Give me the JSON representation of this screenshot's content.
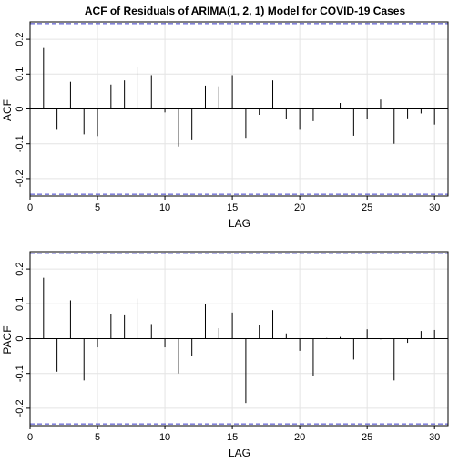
{
  "chart_data": [
    {
      "type": "bar",
      "title": "ACF of Residuals of ARIMA(1, 2, 1) Model for COVID-19 Cases",
      "xlabel": "LAG",
      "ylabel": "ACF",
      "xlim": [
        0,
        31
      ],
      "ylim": [
        -0.25,
        0.25
      ],
      "xticks": [
        "0",
        "5",
        "10",
        "15",
        "20",
        "25",
        "30"
      ],
      "yticks": [
        "-0.2",
        "-0.1",
        "0",
        "0.1",
        "0.2"
      ],
      "grid": true,
      "confidence_bound": 0.245,
      "x": [
        1,
        2,
        3,
        4,
        5,
        6,
        7,
        8,
        9,
        10,
        11,
        12,
        13,
        14,
        15,
        16,
        17,
        18,
        19,
        20,
        21,
        22,
        23,
        24,
        25,
        26,
        27,
        28,
        29,
        30
      ],
      "values": [
        0.175,
        -0.06,
        0.078,
        -0.073,
        -0.078,
        0.07,
        0.082,
        0.12,
        0.097,
        -0.01,
        -0.108,
        -0.09,
        0.067,
        0.065,
        0.097,
        -0.083,
        -0.017,
        0.082,
        -0.03,
        -0.06,
        -0.035,
        0.0,
        0.017,
        -0.077,
        -0.03,
        0.027,
        -0.1,
        -0.027,
        -0.013,
        -0.045
      ],
      "colors": {
        "bars": "#000000",
        "bound": "#3b3bc8",
        "grid": "#e4e4e4",
        "axis": "#000000"
      }
    },
    {
      "type": "bar",
      "title": "",
      "xlabel": "LAG",
      "ylabel": "PACF",
      "xlim": [
        0,
        31
      ],
      "ylim": [
        -0.25,
        0.25
      ],
      "xticks": [
        "0",
        "5",
        "10",
        "15",
        "20",
        "25",
        "30"
      ],
      "yticks": [
        "-0.2",
        "-0.1",
        "0",
        "0.1",
        "0.2"
      ],
      "grid": true,
      "confidence_bound": 0.245,
      "x": [
        1,
        2,
        3,
        4,
        5,
        6,
        7,
        8,
        9,
        10,
        11,
        12,
        13,
        14,
        15,
        16,
        17,
        18,
        19,
        20,
        21,
        22,
        23,
        24,
        25,
        26,
        27,
        28,
        29,
        30
      ],
      "values": [
        0.175,
        -0.095,
        0.11,
        -0.12,
        -0.025,
        0.07,
        0.067,
        0.115,
        0.042,
        -0.025,
        -0.1,
        -0.05,
        0.1,
        0.03,
        0.075,
        -0.185,
        0.04,
        0.082,
        0.015,
        -0.035,
        -0.107,
        0.002,
        0.005,
        -0.06,
        0.027,
        -0.002,
        -0.12,
        -0.012,
        0.022,
        0.025
      ],
      "colors": {
        "bars": "#000000",
        "bound": "#3b3bc8",
        "grid": "#e4e4e4",
        "axis": "#000000"
      }
    }
  ]
}
